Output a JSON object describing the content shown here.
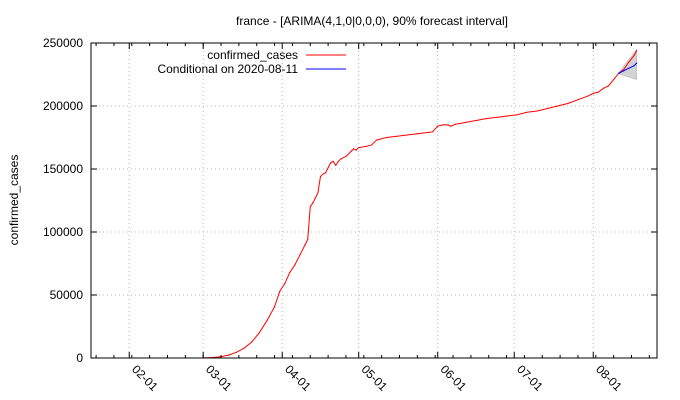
{
  "chart_data": {
    "type": "line",
    "title": "france -  [ARIMA(4,1,0|0,0,0), 90% forecast interval]",
    "xlabel": "",
    "ylabel": "confirmed_cases",
    "x_type": "date",
    "xlim": [
      "2020-01-17",
      "2020-08-26"
    ],
    "ylim": [
      0,
      250000
    ],
    "grid": true,
    "legend_position": "top-right",
    "x_ticks": [
      "2020-02-01",
      "2020-03-01",
      "2020-04-01",
      "2020-05-01",
      "2020-06-01",
      "2020-07-01",
      "2020-08-01"
    ],
    "x_tick_labels": [
      "02-01",
      "03-01",
      "04-01",
      "05-01",
      "06-01",
      "07-01",
      "08-01"
    ],
    "y_ticks": [
      0,
      50000,
      100000,
      150000,
      200000,
      250000
    ],
    "y_tick_labels": [
      "0",
      "50000",
      "100000",
      "150000",
      "200000",
      "250000"
    ],
    "series": [
      {
        "name": "confirmed_cases",
        "color": "#ff0000",
        "points": [
          [
            "2020-03-01",
            100
          ],
          [
            "2020-03-05",
            400
          ],
          [
            "2020-03-08",
            1100
          ],
          [
            "2020-03-11",
            2300
          ],
          [
            "2020-03-14",
            4500
          ],
          [
            "2020-03-17",
            7700
          ],
          [
            "2020-03-20",
            12600
          ],
          [
            "2020-03-23",
            20000
          ],
          [
            "2020-03-26",
            29600
          ],
          [
            "2020-03-29",
            40700
          ],
          [
            "2020-03-31",
            52800
          ],
          [
            "2020-04-02",
            59000
          ],
          [
            "2020-04-04",
            68000
          ],
          [
            "2020-04-06",
            74000
          ],
          [
            "2020-04-08",
            82000
          ],
          [
            "2020-04-10",
            90000
          ],
          [
            "2020-04-11",
            94000
          ],
          [
            "2020-04-12",
            120000
          ],
          [
            "2020-04-13",
            123000
          ],
          [
            "2020-04-14",
            127000
          ],
          [
            "2020-04-15",
            131000
          ],
          [
            "2020-04-16",
            144000
          ],
          [
            "2020-04-17",
            146000
          ],
          [
            "2020-04-18",
            147000
          ],
          [
            "2020-04-19",
            151000
          ],
          [
            "2020-04-20",
            155000
          ],
          [
            "2020-04-21",
            156000
          ],
          [
            "2020-04-22",
            153000
          ],
          [
            "2020-04-23",
            156000
          ],
          [
            "2020-04-24",
            158000
          ],
          [
            "2020-04-26",
            160000
          ],
          [
            "2020-04-28",
            164000
          ],
          [
            "2020-04-29",
            166000
          ],
          [
            "2020-04-30",
            165000
          ],
          [
            "2020-05-01",
            167000
          ],
          [
            "2020-05-04",
            168000
          ],
          [
            "2020-05-06",
            169000
          ],
          [
            "2020-05-08",
            173000
          ],
          [
            "2020-05-12",
            175000
          ],
          [
            "2020-05-16",
            176000
          ],
          [
            "2020-05-20",
            177000
          ],
          [
            "2020-05-24",
            178000
          ],
          [
            "2020-05-28",
            179000
          ],
          [
            "2020-05-30",
            179500
          ],
          [
            "2020-06-01",
            184000
          ],
          [
            "2020-06-03",
            185000
          ],
          [
            "2020-06-05",
            185000
          ],
          [
            "2020-06-06",
            184000
          ],
          [
            "2020-06-08",
            185500
          ],
          [
            "2020-06-12",
            187000
          ],
          [
            "2020-06-16",
            188500
          ],
          [
            "2020-06-20",
            190000
          ],
          [
            "2020-06-24",
            191000
          ],
          [
            "2020-06-28",
            192000
          ],
          [
            "2020-07-02",
            193000
          ],
          [
            "2020-07-06",
            195000
          ],
          [
            "2020-07-10",
            196000
          ],
          [
            "2020-07-14",
            198000
          ],
          [
            "2020-07-18",
            200000
          ],
          [
            "2020-07-22",
            202000
          ],
          [
            "2020-07-26",
            205000
          ],
          [
            "2020-07-30",
            208000
          ],
          [
            "2020-08-01",
            210000
          ],
          [
            "2020-08-03",
            211000
          ],
          [
            "2020-08-05",
            214000
          ],
          [
            "2020-08-07",
            216000
          ],
          [
            "2020-08-09",
            221000
          ],
          [
            "2020-08-11",
            226000
          ],
          [
            "2020-08-13",
            229000
          ],
          [
            "2020-08-15",
            235000
          ],
          [
            "2020-08-17",
            240000
          ],
          [
            "2020-08-18",
            244000
          ]
        ]
      },
      {
        "name": "Conditional on 2020-08-11",
        "color": "#0000ff",
        "points": [
          [
            "2020-08-11",
            226000
          ],
          [
            "2020-08-13",
            228000
          ],
          [
            "2020-08-15",
            230000
          ],
          [
            "2020-08-17",
            232000
          ],
          [
            "2020-08-18",
            234000
          ]
        ]
      }
    ],
    "forecast_interval": {
      "color": "#d3d3d3",
      "upper": [
        [
          "2020-08-11",
          226500
        ],
        [
          "2020-08-18",
          245000
        ]
      ],
      "lower": [
        [
          "2020-08-11",
          225500
        ],
        [
          "2020-08-18",
          221000
        ]
      ]
    }
  }
}
